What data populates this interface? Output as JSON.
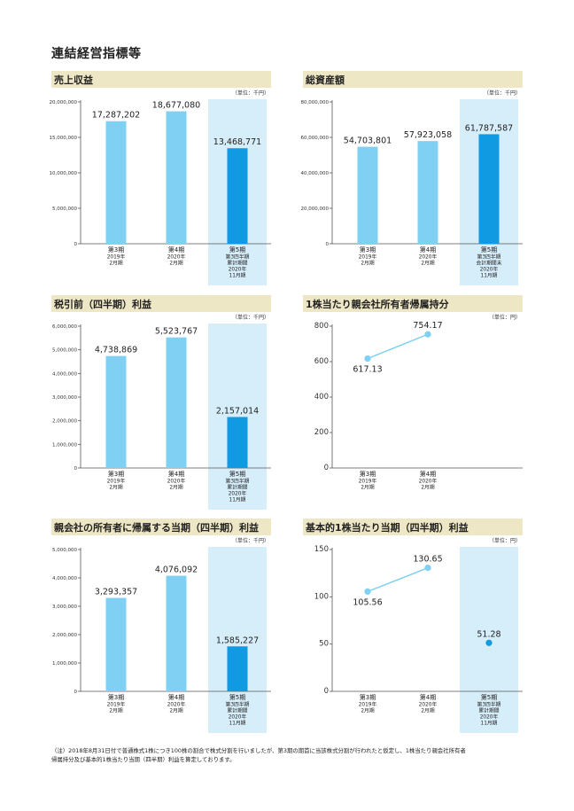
{
  "page": {
    "title": "連結経営指標等"
  },
  "chart_data": [
    {
      "id": "revenue",
      "title": "売上収益",
      "unit": "（単位：千円）",
      "type": "bar",
      "ylim": [
        0,
        20000000
      ],
      "yticks": [
        "20,000,000",
        "15,000,000",
        "10,000,000",
        "5,000,000",
        "0"
      ],
      "ytick_values": [
        20000000,
        15000000,
        10000000,
        5000000,
        0
      ],
      "categories": [
        {
          "name": "第3期",
          "sub": [
            "2019年",
            "2月期"
          ]
        },
        {
          "name": "第4期",
          "sub": [
            "2020年",
            "2月期"
          ]
        },
        {
          "name": "第5期",
          "sub": [
            "第3四半期",
            "累計期間",
            "2020年",
            "11月期"
          ]
        }
      ],
      "values": [
        17287202,
        18677080,
        13468771
      ],
      "value_labels": [
        "17,287,202",
        "18,677,080",
        "13,468,771"
      ],
      "colors": [
        "#7fd0f2",
        "#7fd0f2",
        "#0f9ae2"
      ],
      "highlight_color": "#d6edfa"
    },
    {
      "id": "total-assets",
      "title": "総資産額",
      "unit": "（単位：千円）",
      "type": "bar",
      "ylim": [
        0,
        80000000
      ],
      "yticks": [
        "80,000,000",
        "60,000,000",
        "40,000,000",
        "20,000,000",
        "0"
      ],
      "ytick_values": [
        80000000,
        60000000,
        40000000,
        20000000,
        0
      ],
      "categories": [
        {
          "name": "第3期",
          "sub": [
            "2019年",
            "2月期"
          ]
        },
        {
          "name": "第4期",
          "sub": [
            "2020年",
            "2月期"
          ]
        },
        {
          "name": "第5期",
          "sub": [
            "第3四半期",
            "会計期間末",
            "2020年",
            "11月期"
          ]
        }
      ],
      "values": [
        54703801,
        57923058,
        61787587
      ],
      "value_labels": [
        "54,703,801",
        "57,923,058",
        "61,787,587"
      ],
      "colors": [
        "#7fd0f2",
        "#7fd0f2",
        "#0f9ae2"
      ],
      "highlight_color": "#d6edfa"
    },
    {
      "id": "pretax-profit",
      "title": "税引前（四半期）利益",
      "unit": "（単位：千円）",
      "type": "bar",
      "ylim": [
        0,
        6000000
      ],
      "yticks": [
        "6,000,000",
        "5,000,000",
        "4,000,000",
        "3,000,000",
        "2,000,000",
        "1,000,000",
        "0"
      ],
      "ytick_values": [
        6000000,
        5000000,
        4000000,
        3000000,
        2000000,
        1000000,
        0
      ],
      "categories": [
        {
          "name": "第3期",
          "sub": [
            "2019年",
            "2月期"
          ]
        },
        {
          "name": "第4期",
          "sub": [
            "2020年",
            "2月期"
          ]
        },
        {
          "name": "第5期",
          "sub": [
            "第3四半期",
            "累計期間",
            "2020年",
            "11月期"
          ]
        }
      ],
      "values": [
        4738869,
        5523767,
        2157014
      ],
      "value_labels": [
        "4,738,869",
        "5,523,767",
        "2,157,014"
      ],
      "colors": [
        "#7fd0f2",
        "#7fd0f2",
        "#0f9ae2"
      ],
      "highlight_color": "#d6edfa"
    },
    {
      "id": "equity-per-share",
      "title": "1株当たり親会社所有者帰属持分",
      "unit": "（単位：円）",
      "type": "line",
      "ylim": [
        0,
        800
      ],
      "yticks": [
        "800",
        "600",
        "400",
        "200",
        "0"
      ],
      "ytick_values": [
        800,
        600,
        400,
        200,
        0
      ],
      "categories": [
        {
          "name": "第3期",
          "sub": [
            "2019年",
            "2月期"
          ]
        },
        {
          "name": "第4期",
          "sub": [
            "2020年",
            "2月期"
          ]
        }
      ],
      "slots": 3,
      "values": [
        617.13,
        754.17
      ],
      "value_labels": [
        "617.13",
        "754.17"
      ],
      "label_pos": [
        "below",
        "above"
      ],
      "line_color": "#7fd0f2",
      "point_color": "#7fd0f2"
    },
    {
      "id": "net-profit",
      "title": "親会社の所有者に帰属する当期（四半期）利益",
      "unit": "（単位：千円）",
      "type": "bar",
      "ylim": [
        0,
        5000000
      ],
      "yticks": [
        "5,000,000",
        "4,000,000",
        "3,000,000",
        "2,000,000",
        "1,000,000",
        "0"
      ],
      "ytick_values": [
        5000000,
        4000000,
        3000000,
        2000000,
        1000000,
        0
      ],
      "categories": [
        {
          "name": "第3期",
          "sub": [
            "2019年",
            "2月期"
          ]
        },
        {
          "name": "第4期",
          "sub": [
            "2020年",
            "2月期"
          ]
        },
        {
          "name": "第5期",
          "sub": [
            "第3四半期",
            "累計期間",
            "2020年",
            "11月期"
          ]
        }
      ],
      "values": [
        3293357,
        4076092,
        1585227
      ],
      "value_labels": [
        "3,293,357",
        "4,076,092",
        "1,585,227"
      ],
      "colors": [
        "#7fd0f2",
        "#7fd0f2",
        "#0f9ae2"
      ],
      "highlight_color": "#d6edfa"
    },
    {
      "id": "eps",
      "title": "基本的1株当たり当期（四半期）利益",
      "unit": "（単位：円）",
      "type": "line",
      "ylim": [
        0,
        150
      ],
      "yticks": [
        "150",
        "100",
        "50",
        "0"
      ],
      "ytick_values": [
        150,
        100,
        50,
        0
      ],
      "categories": [
        {
          "name": "第3期",
          "sub": [
            "2019年",
            "2月期"
          ]
        },
        {
          "name": "第4期",
          "sub": [
            "2020年",
            "2月期"
          ]
        },
        {
          "name": "第5期",
          "sub": [
            "第3四半期",
            "累計期間",
            "2020年",
            "11月期"
          ]
        }
      ],
      "slots": 3,
      "values": [
        105.56,
        130.65,
        51.28
      ],
      "value_labels": [
        "105.56",
        "130.65",
        "51.28"
      ],
      "label_pos": [
        "below",
        "above",
        "above"
      ],
      "line_color": "#7fd0f2",
      "point_color": "#7fd0f2",
      "separate_last": true,
      "last_point_color": "#0f9ae2",
      "highlight_color": "#d6edfa"
    }
  ],
  "footnote": {
    "line1": "（注）2018年8月31日付で普通株式1株につき100株の割合で株式分割を行いましたが、第3期の期首に当該株式分割が行われたと仮定し、1株当たり親会社所有者",
    "line2": "帰属持分及び基本的1株当たり当期（四半期）利益を算定しております。"
  }
}
